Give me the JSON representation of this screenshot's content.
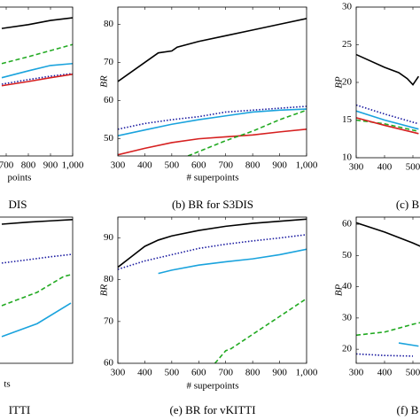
{
  "chart_data": [
    {
      "type": "line",
      "caption": "DIS",
      "xlabel": "points",
      "xlim": [
        300,
        1000
      ],
      "ylim": [
        45.5,
        84.5
      ],
      "xticks": [
        700,
        800,
        900,
        {
          "value": 1000,
          "label": "1,000"
        }
      ],
      "series": [
        {
          "color": "#000000",
          "style": "solid",
          "x": [
            680,
            800,
            900,
            1000
          ],
          "values": [
            78.9,
            79.9,
            81.0,
            81.7
          ]
        },
        {
          "color": "#22aa22",
          "style": "dashed",
          "x": [
            680,
            800,
            900,
            1000
          ],
          "values": [
            69.7,
            71.5,
            73.1,
            74.7
          ]
        },
        {
          "color": "#1aa3dd",
          "style": "solid",
          "x": [
            680,
            800,
            900,
            1000
          ],
          "values": [
            66.0,
            67.8,
            69.2,
            69.7
          ]
        },
        {
          "color": "#1a1aa0",
          "style": "dotted",
          "x": [
            680,
            800,
            900,
            1000
          ],
          "values": [
            64.3,
            65.5,
            66.4,
            67.1
          ]
        },
        {
          "color": "#d62020",
          "style": "solid",
          "x": [
            680,
            800,
            900,
            1000
          ],
          "values": [
            63.9,
            65.0,
            66.0,
            66.9
          ]
        }
      ]
    },
    {
      "type": "line",
      "caption": "(b) BR for S3DIS",
      "xlabel": "# superpoints",
      "ylabel": "BR",
      "xlim": [
        300,
        1000
      ],
      "ylim": [
        45.5,
        84.5
      ],
      "xticks": [
        300,
        400,
        500,
        600,
        700,
        800,
        900,
        {
          "value": 1000,
          "label": "1,000"
        }
      ],
      "yticks": [
        50,
        60,
        70,
        80
      ],
      "series": [
        {
          "color": "#000000",
          "style": "solid",
          "x": [
            300,
            400,
            450,
            500,
            520,
            600,
            700,
            800,
            900,
            1000
          ],
          "values": [
            65,
            70,
            72.5,
            73,
            74,
            75.5,
            77,
            78.5,
            80,
            81.5
          ]
        },
        {
          "color": "#1a1aa0",
          "style": "dotted",
          "x": [
            300,
            400,
            500,
            600,
            700,
            800,
            900,
            1000
          ],
          "values": [
            52.5,
            54,
            55,
            55.8,
            57,
            57.5,
            58,
            58.5
          ]
        },
        {
          "color": "#1aa3dd",
          "style": "solid",
          "x": [
            300,
            400,
            500,
            600,
            700,
            800,
            900,
            1000
          ],
          "values": [
            50.8,
            52.3,
            53.8,
            55,
            56,
            57,
            57.5,
            57.8
          ]
        },
        {
          "color": "#d62020",
          "style": "solid",
          "x": [
            300,
            400,
            500,
            600,
            700,
            800,
            900,
            1000
          ],
          "values": [
            45.8,
            47.5,
            49,
            50,
            50.5,
            51,
            51.8,
            52.5
          ]
        },
        {
          "color": "#22aa22",
          "style": "dashed",
          "x": [
            560,
            700,
            800,
            900,
            1000
          ],
          "values": [
            45.5,
            49.5,
            52,
            55,
            57.5
          ]
        }
      ]
    },
    {
      "type": "line",
      "caption": "(c) B",
      "ylabel": "BP",
      "xlim": [
        300,
        1000
      ],
      "ylim": [
        10,
        30
      ],
      "xticks": [
        300,
        400,
        500
      ],
      "yticks": [
        10,
        15,
        20,
        25,
        30
      ],
      "series": [
        {
          "color": "#000000",
          "style": "solid",
          "x": [
            300,
            400,
            450,
            480,
            500,
            520
          ],
          "values": [
            23.7,
            22,
            21.3,
            20.5,
            19.7,
            20.8
          ]
        },
        {
          "color": "#1a1aa0",
          "style": "dotted",
          "x": [
            300,
            400,
            520
          ],
          "values": [
            17,
            15.8,
            14.5
          ]
        },
        {
          "color": "#1aa3dd",
          "style": "solid",
          "x": [
            300,
            400,
            520
          ],
          "values": [
            16.2,
            15,
            13.8
          ]
        },
        {
          "color": "#22aa22",
          "style": "dashed",
          "x": [
            300,
            400,
            520
          ],
          "values": [
            15,
            14.5,
            13.5
          ]
        },
        {
          "color": "#d62020",
          "style": "solid",
          "x": [
            300,
            400,
            520
          ],
          "values": [
            15.3,
            14.3,
            13.2
          ]
        }
      ]
    },
    {
      "type": "line",
      "caption": "ITTI",
      "xlabel": "ts",
      "xlim": [
        300,
        1000
      ],
      "ylim": [
        60,
        95
      ],
      "series": [
        {
          "color": "#000000",
          "style": "solid",
          "x": [
            680,
            800,
            900,
            1000
          ],
          "values": [
            93.3,
            93.8,
            94.1,
            94.4
          ]
        },
        {
          "color": "#1a1aa0",
          "style": "dotted",
          "x": [
            680,
            800,
            900,
            1000
          ],
          "values": [
            84.0,
            84.8,
            85.5,
            86.1
          ]
        },
        {
          "color": "#22aa22",
          "style": "dashed",
          "x": [
            680,
            840,
            960,
            992
          ],
          "values": [
            73.8,
            77.0,
            80.8,
            81.2
          ]
        },
        {
          "color": "#1aa3dd",
          "style": "solid",
          "x": [
            680,
            840,
            992
          ],
          "values": [
            66.4,
            69.5,
            74.4
          ]
        }
      ]
    },
    {
      "type": "line",
      "caption": "(e) BR for vKITTI",
      "xlabel": "# superpoints",
      "ylabel": "BR",
      "xlim": [
        300,
        1000
      ],
      "ylim": [
        60,
        95
      ],
      "xticks": [
        300,
        400,
        500,
        600,
        700,
        800,
        900,
        {
          "value": 1000,
          "label": "1,000"
        }
      ],
      "yticks": [
        60,
        70,
        80,
        90
      ],
      "series": [
        {
          "color": "#000000",
          "style": "solid",
          "x": [
            300,
            350,
            400,
            450,
            500,
            600,
            700,
            800,
            900,
            1000
          ],
          "values": [
            83,
            85.5,
            88,
            89.5,
            90.5,
            91.8,
            92.8,
            93.5,
            94,
            94.5
          ]
        },
        {
          "color": "#1a1aa0",
          "style": "dotted",
          "x": [
            300,
            400,
            500,
            600,
            700,
            800,
            900,
            1000
          ],
          "values": [
            82.5,
            84.5,
            86,
            87.5,
            88.5,
            89.3,
            90,
            90.8
          ]
        },
        {
          "color": "#1aa3dd",
          "style": "solid",
          "x": [
            450,
            500,
            600,
            700,
            800,
            900,
            1000
          ],
          "values": [
            81.5,
            82.3,
            83.5,
            84.3,
            85,
            86,
            87.3
          ]
        },
        {
          "color": "#22aa22",
          "style": "dashed",
          "x": [
            660,
            700,
            720,
            1000
          ],
          "values": [
            60,
            63,
            63.5,
            75.5
          ]
        }
      ]
    },
    {
      "type": "line",
      "caption": "(f) B",
      "ylabel": "BP",
      "xlim": [
        300,
        1000
      ],
      "ylim": [
        15.5,
        62.3
      ],
      "xticks": [
        300,
        400,
        500
      ],
      "yticks": [
        20,
        30,
        40,
        50,
        60
      ],
      "series": [
        {
          "color": "#000000",
          "style": "solid",
          "x": [
            300,
            400,
            500,
            550
          ],
          "values": [
            60.5,
            57.5,
            54,
            52
          ]
        },
        {
          "color": "#22aa22",
          "style": "dashed",
          "x": [
            300,
            400,
            500,
            550
          ],
          "values": [
            24.5,
            25.5,
            28,
            29
          ]
        },
        {
          "color": "#1aa3dd",
          "style": "solid",
          "x": [
            450,
            520
          ],
          "values": [
            22,
            21
          ]
        },
        {
          "color": "#1a1aa0",
          "style": "dotted",
          "x": [
            300,
            400,
            500
          ],
          "values": [
            18.5,
            18,
            17.8
          ]
        }
      ]
    }
  ]
}
